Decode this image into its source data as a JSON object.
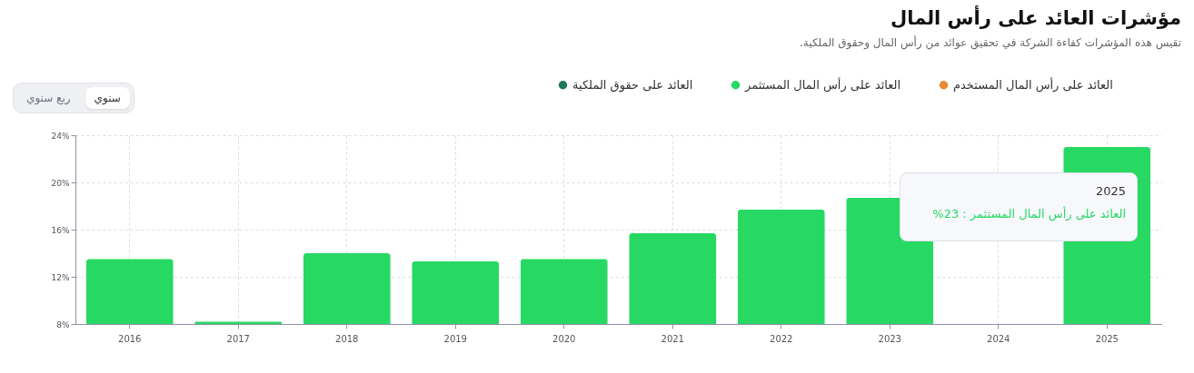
{
  "chart_data": {
    "type": "bar",
    "title": "مؤشرات العائد على رأس المال",
    "subtitle": "تقيس هذه المؤشرات كفاءة الشركة في تحقيق عوائد من رأس المال وحقوق الملكية.",
    "categories": [
      "2016",
      "2017",
      "2018",
      "2019",
      "2020",
      "2021",
      "2022",
      "2023",
      "2024",
      "2025"
    ],
    "series": [
      {
        "name": "العائد على حقوق الملكية",
        "color": "#1b7a55",
        "values": [
          null,
          null,
          null,
          null,
          null,
          null,
          null,
          null,
          null,
          null
        ]
      },
      {
        "name": "العائد على رأس المال المستثمر",
        "color": "#27d963",
        "values": [
          13.5,
          8.2,
          14.0,
          13.3,
          13.5,
          15.7,
          17.7,
          18.7,
          null,
          23
        ]
      },
      {
        "name": "العائد على رأس المال المستخدم",
        "color": "#e88b2e",
        "values": [
          null,
          null,
          null,
          null,
          null,
          null,
          null,
          null,
          null,
          null
        ]
      }
    ],
    "ylim": [
      8,
      24
    ],
    "yticks": [
      {
        "value": 8,
        "label": "8%"
      },
      {
        "value": 12,
        "label": "12%"
      },
      {
        "value": 16,
        "label": "16%"
      },
      {
        "value": 20,
        "label": "20%"
      },
      {
        "value": 24,
        "label": "24%"
      }
    ],
    "grid": true,
    "legend": "top",
    "annotations": [
      "سنوي",
      "ربع سنوي",
      "2025",
      "العائد على رأس المال المستثمر : 23%"
    ]
  }
}
